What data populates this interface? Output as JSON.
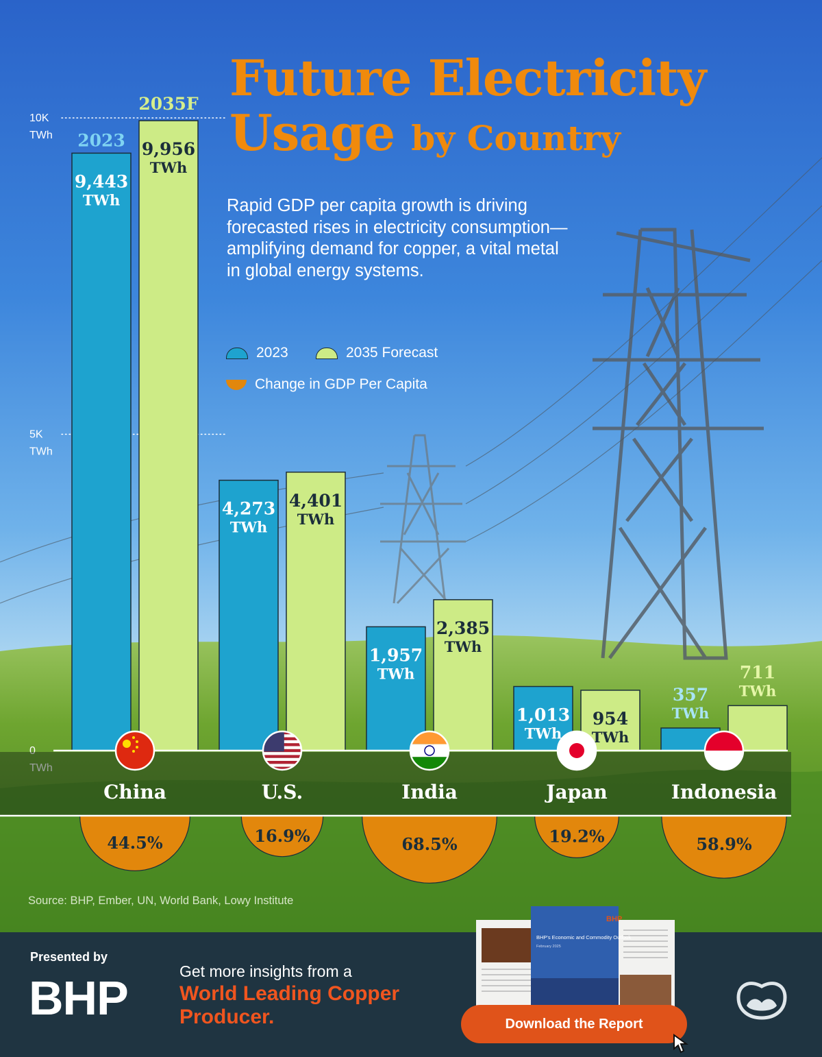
{
  "title": {
    "line1": "Future Electricity",
    "line2_main": "Usage",
    "line2_small": "by Country"
  },
  "subtitle": "Rapid GDP per capita growth is driving forecasted rises in electricity consumption—amplifying demand for copper, a vital metal in global energy systems.",
  "legend": {
    "series_a": "2023",
    "series_b": "2035 Forecast",
    "gdp": "Change in GDP Per Capita"
  },
  "colors": {
    "series_a": "#1ea3cf",
    "series_b": "#cdeb86",
    "gdp": "#e2870c",
    "title": "#f08a0c",
    "footer_bg": "#1f3441",
    "cta": "#e0531a"
  },
  "chart_data": {
    "type": "bar",
    "categories": [
      "China",
      "U.S.",
      "India",
      "Japan",
      "Indonesia"
    ],
    "flags": [
      "china-flag",
      "us-flag",
      "india-flag",
      "japan-flag",
      "indonesia-flag"
    ],
    "series": [
      {
        "name": "2023",
        "values": [
          9443,
          4273,
          1957,
          1013,
          357
        ]
      },
      {
        "name": "2035F",
        "values": [
          9956,
          4401,
          2385,
          954,
          711
        ]
      }
    ],
    "value_labels": {
      "2023": [
        "9,443",
        "4,273",
        "1,957",
        "1,013",
        "357"
      ],
      "2035F": [
        "9,956",
        "4,401",
        "2,385",
        "954",
        "711"
      ]
    },
    "unit": "TWh",
    "gdp_per_capita_change_pct": [
      44.5,
      16.9,
      68.5,
      19.2,
      58.9
    ],
    "gdp_labels": [
      "44.5%",
      "16.9%",
      "68.5%",
      "19.2%",
      "58.9%"
    ],
    "y_ticks": [
      {
        "value": 10000,
        "label": "10K",
        "unit": "TWh"
      },
      {
        "value": 5000,
        "label": "5K",
        "unit": "TWh"
      },
      {
        "value": 0,
        "label": "0",
        "unit": "TWh"
      }
    ],
    "ylim": [
      0,
      10000
    ],
    "grid": "dotted lines at 5K and 10K",
    "legend_position": "top-right"
  },
  "source": "Source: BHP, Ember, UN, World Bank, Lowy Institute",
  "footer": {
    "presented_by": "Presented by",
    "brand": "BHP",
    "insight_line": "Get more insights from a",
    "highlight": "World Leading Copper Producer.",
    "report_brand": "BHP",
    "report_title": "BHP's Economic and Commodity Outlook",
    "report_date": "February 2025",
    "cta": "Download the Report",
    "logo_icon": "visual-capitalist-logo-icon",
    "cursor_icon": "cursor-arrow-icon"
  }
}
